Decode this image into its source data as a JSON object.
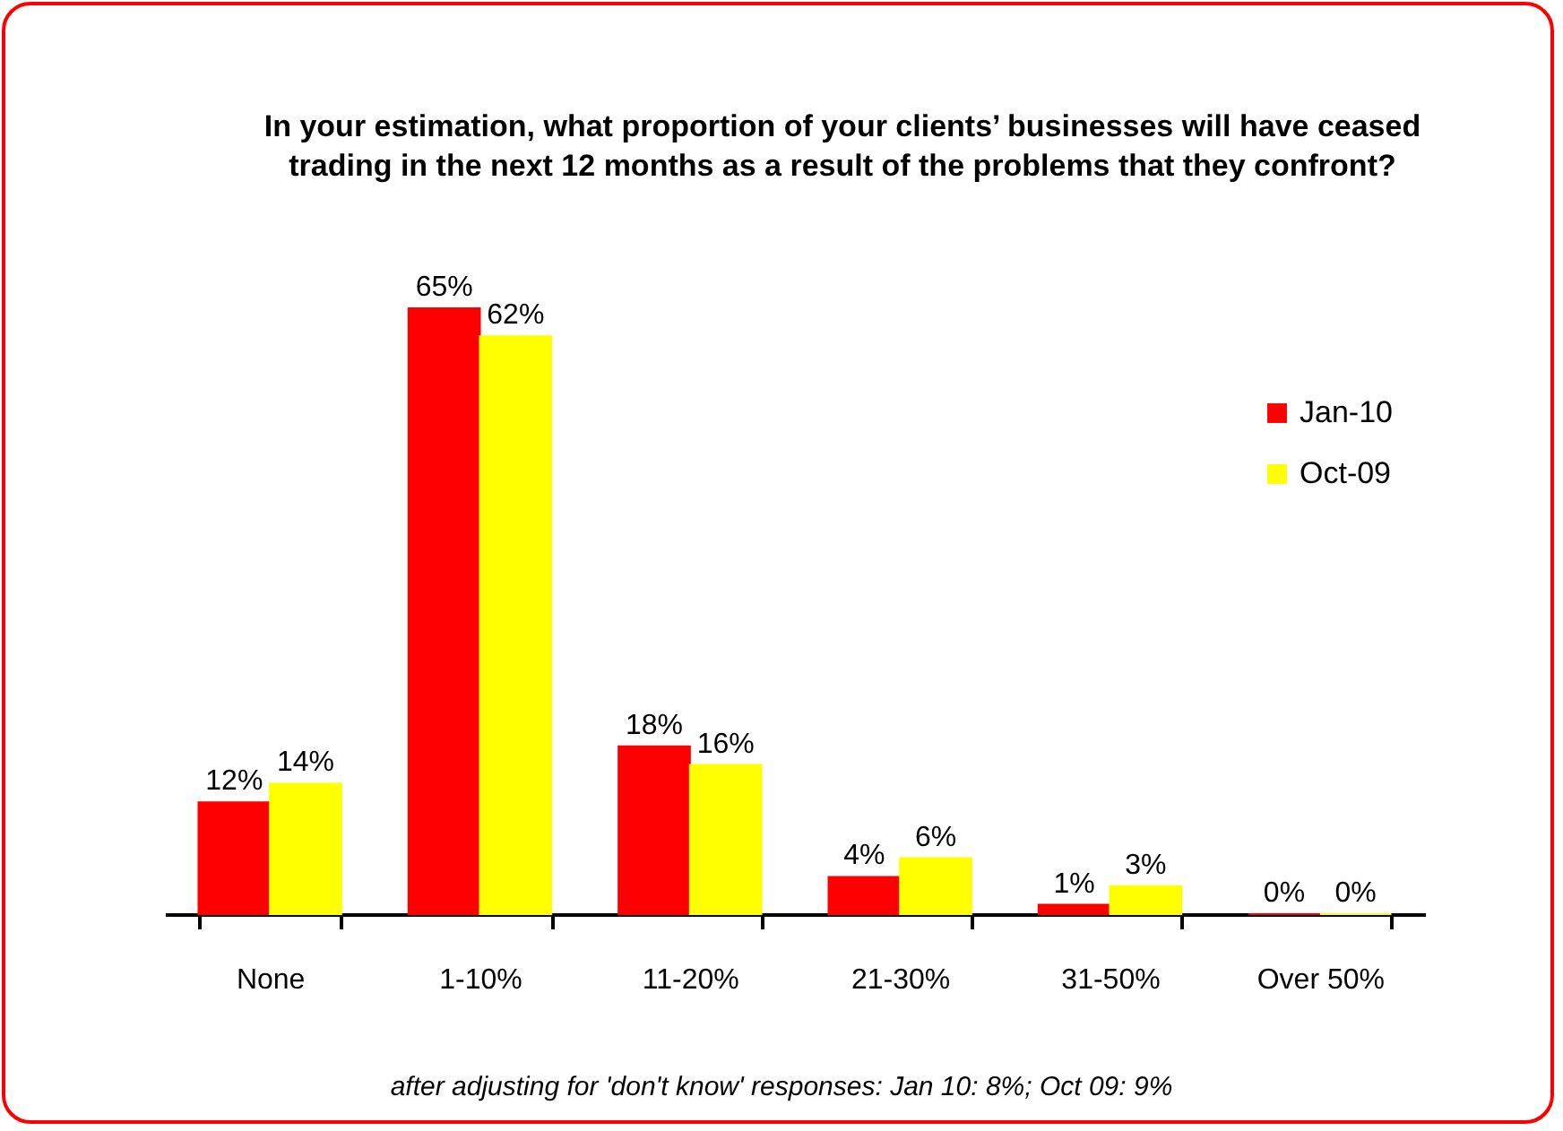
{
  "chart_data": {
    "type": "bar",
    "title": "In your estimation, what proportion of your clients’ businesses will have ceased trading in the next 12 months as a result of the problems that they confront?",
    "categories": [
      "None",
      "1-10%",
      "11-20%",
      "21-30%",
      "31-50%",
      "Over 50%"
    ],
    "series": [
      {
        "name": "Jan-10",
        "color": "#ff0000",
        "values": [
          12,
          65,
          18,
          4,
          1,
          0
        ],
        "value_labels": [
          "12%",
          "65%",
          "18%",
          "4%",
          "1%",
          "0%"
        ]
      },
      {
        "name": "Oct-09",
        "color": "#ffff00",
        "values": [
          14,
          62,
          16,
          6,
          3,
          0
        ],
        "value_labels": [
          "14%",
          "62%",
          "16%",
          "6%",
          "3%",
          "0%"
        ]
      }
    ],
    "tick_labels": "x",
    "legend": "right",
    "grid": false,
    "annotations": [
      "after adjusting for 'don't know' responses: Jan 10: 8%; Oct 09: 9%"
    ]
  }
}
